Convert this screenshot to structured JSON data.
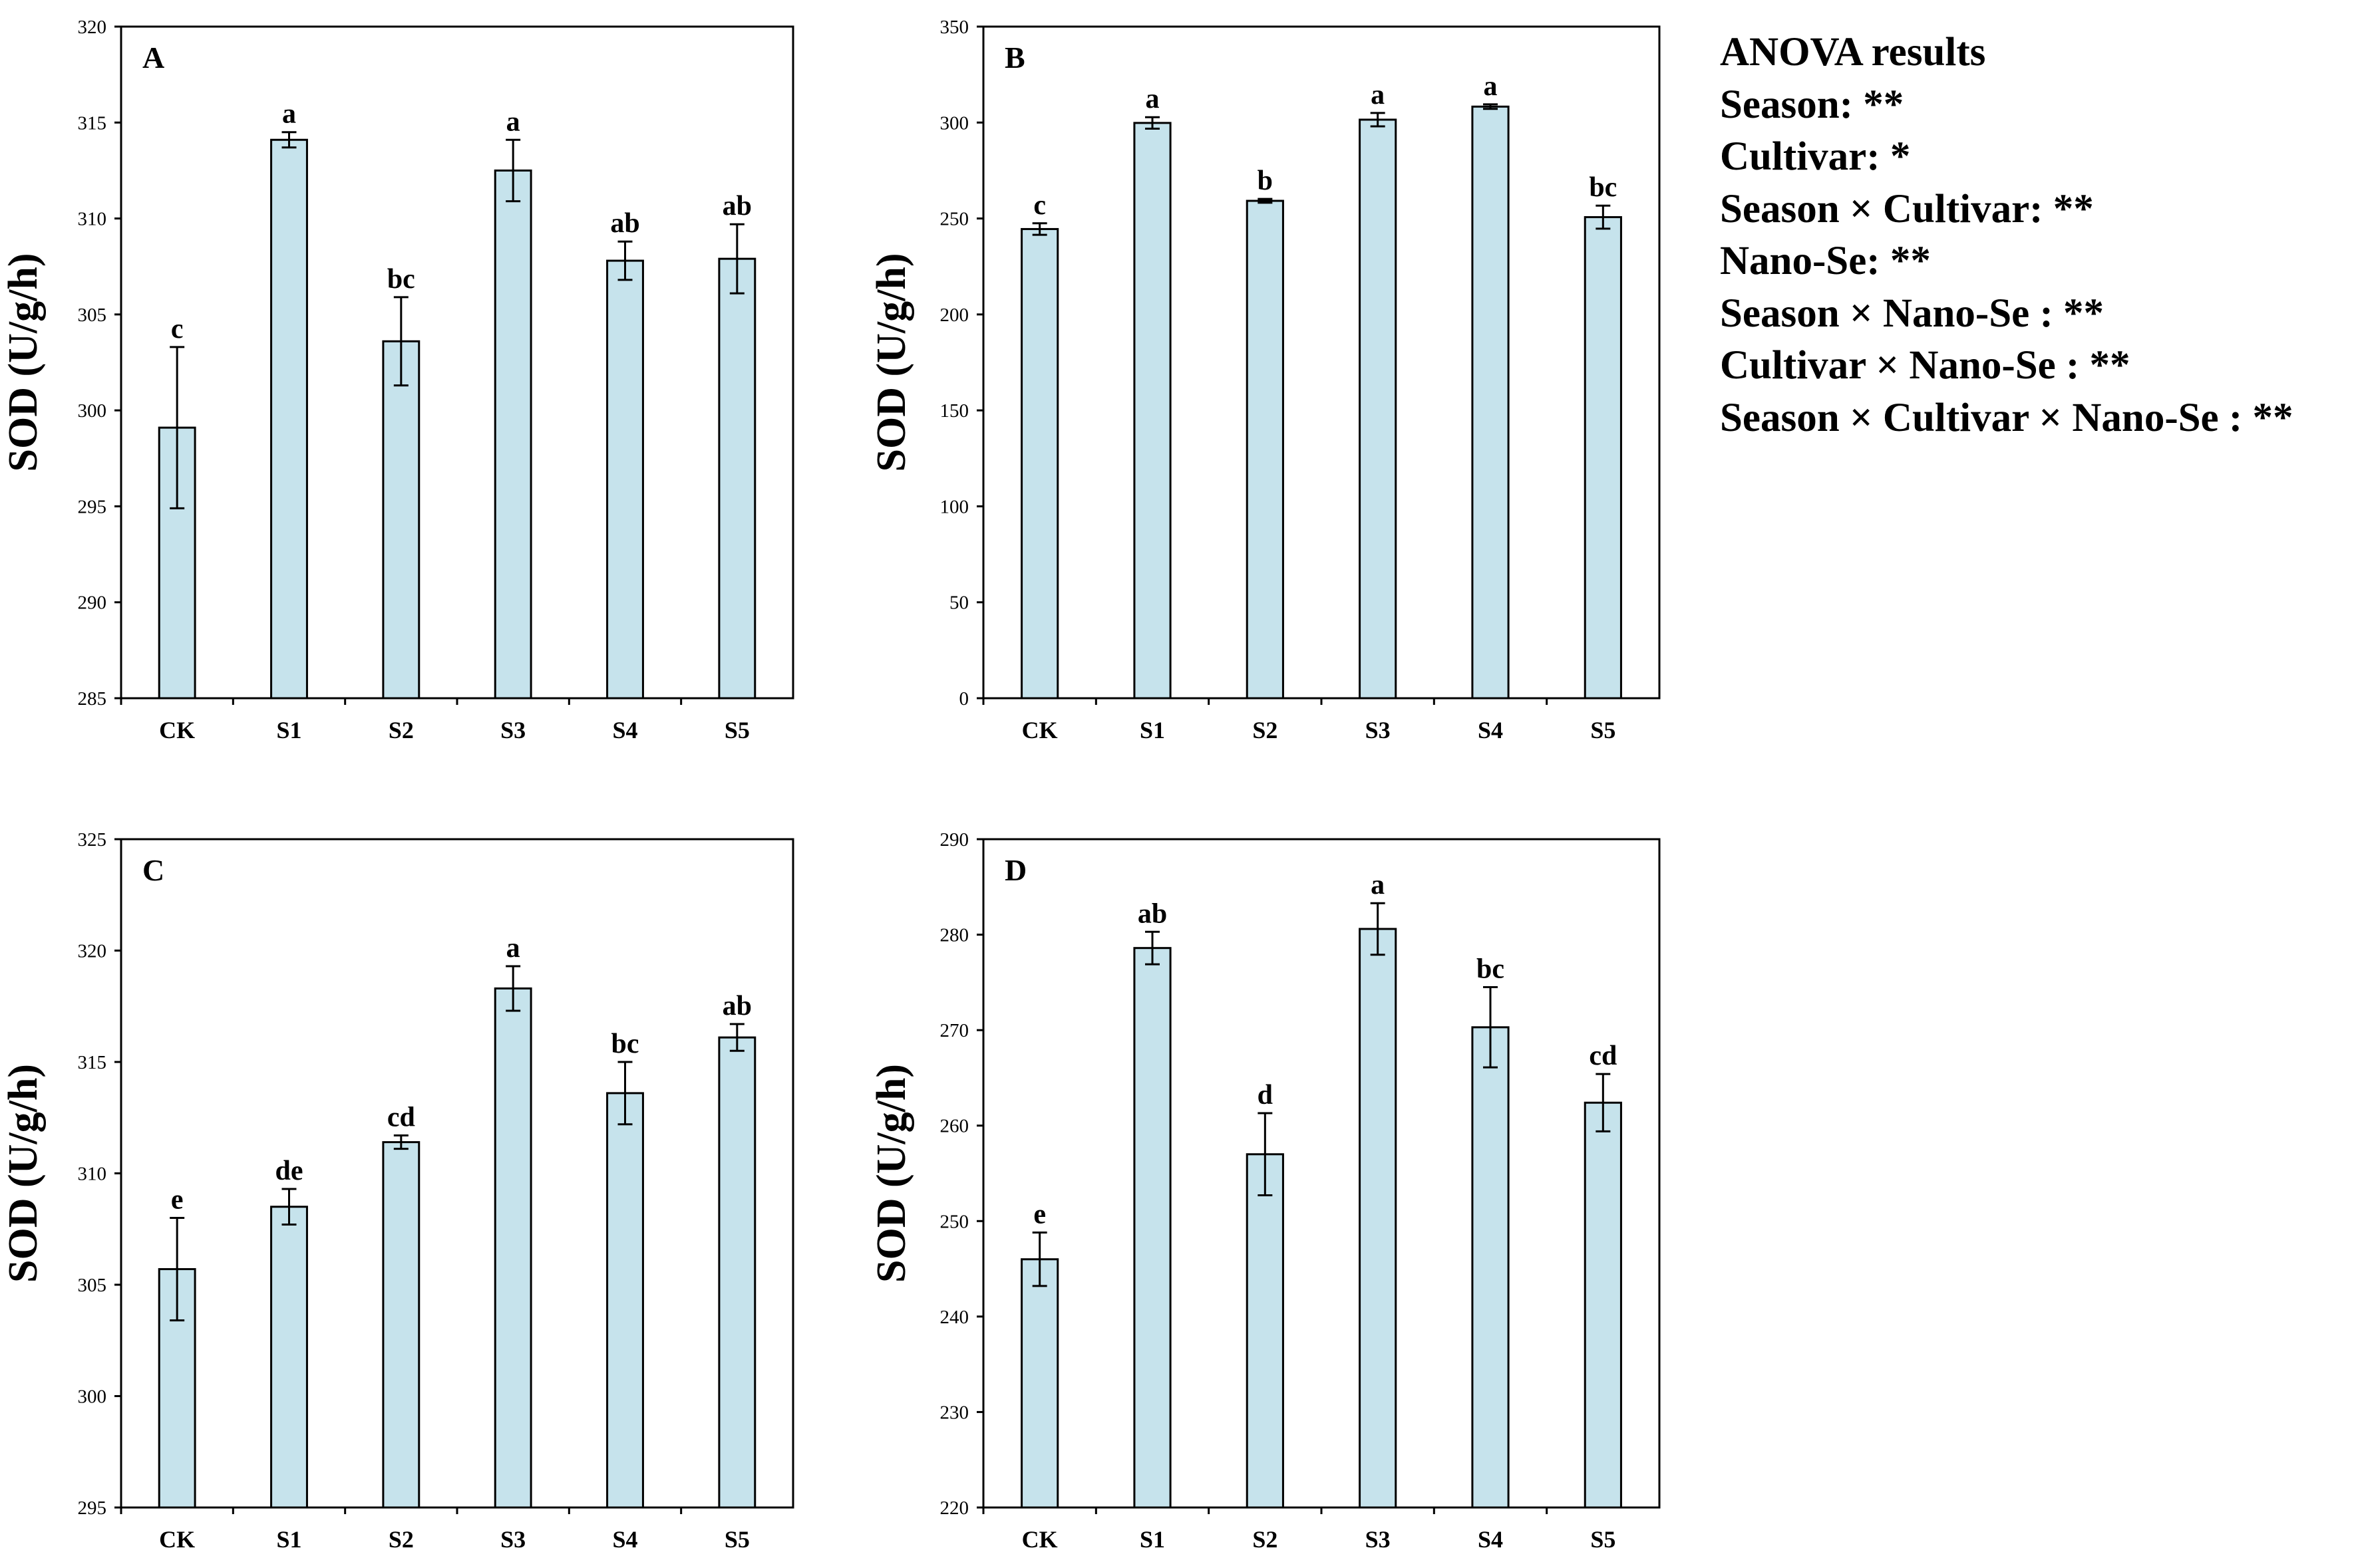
{
  "figure_ylabel": "SOD (U/g/h)",
  "colors": {
    "bar_fill": "#c6e3ec",
    "bar_stroke": "#000000",
    "axis": "#000000"
  },
  "anova": {
    "title": "ANOVA results",
    "lines": [
      "Season: **",
      "Cultivar: *",
      "Season × Cultivar: **",
      "Nano-Se: **",
      "Season × Nano-Se : **",
      "Cultivar × Nano-Se : **",
      "Season × Cultivar × Nano-Se : **"
    ]
  },
  "chart_data": [
    {
      "type": "bar",
      "panel_label": "A",
      "ylabel": "SOD (U/g/h)",
      "categories": [
        "CK",
        "S1",
        "S2",
        "S3",
        "S4",
        "S5"
      ],
      "values": [
        299.1,
        314.1,
        303.6,
        312.5,
        307.8,
        307.9
      ],
      "errors": [
        4.2,
        0.4,
        2.3,
        1.6,
        1.0,
        1.8
      ],
      "letters": [
        "c",
        "a",
        "bc",
        "a",
        "ab",
        "ab"
      ],
      "ylim": [
        285,
        320
      ],
      "yticks": [
        285,
        290,
        295,
        300,
        305,
        310,
        315,
        320
      ]
    },
    {
      "type": "bar",
      "panel_label": "B",
      "ylabel": "SOD (U/g/h)",
      "categories": [
        "CK",
        "S1",
        "S2",
        "S3",
        "S4",
        "S5"
      ],
      "values": [
        244.5,
        299.8,
        259.2,
        301.5,
        308.3,
        250.7
      ],
      "errors": [
        3.0,
        3.0,
        1.0,
        3.5,
        1.2,
        6.0
      ],
      "letters": [
        "c",
        "a",
        "b",
        "a",
        "a",
        "bc"
      ],
      "ylim": [
        0,
        350
      ],
      "yticks": [
        0,
        50,
        100,
        150,
        200,
        250,
        300,
        350
      ]
    },
    {
      "type": "bar",
      "panel_label": "C",
      "ylabel": "SOD (U/g/h)",
      "categories": [
        "CK",
        "S1",
        "S2",
        "S3",
        "S4",
        "S5"
      ],
      "values": [
        305.7,
        308.5,
        311.4,
        318.3,
        313.6,
        316.1
      ],
      "errors": [
        2.3,
        0.8,
        0.3,
        1.0,
        1.4,
        0.6
      ],
      "letters": [
        "e",
        "de",
        "cd",
        "a",
        "bc",
        "ab"
      ],
      "ylim": [
        295,
        325
      ],
      "yticks": [
        295,
        300,
        305,
        310,
        315,
        320,
        325
      ]
    },
    {
      "type": "bar",
      "panel_label": "D",
      "ylabel": "SOD (U/g/h)",
      "categories": [
        "CK",
        "S1",
        "S2",
        "S3",
        "S4",
        "S5"
      ],
      "values": [
        246.0,
        278.6,
        257.0,
        280.6,
        270.3,
        262.4
      ],
      "errors": [
        2.8,
        1.7,
        4.3,
        2.7,
        4.2,
        3.0
      ],
      "letters": [
        "e",
        "ab",
        "d",
        "a",
        "bc",
        "cd"
      ],
      "ylim": [
        220,
        290
      ],
      "yticks": [
        220,
        230,
        240,
        250,
        260,
        270,
        280,
        290
      ]
    }
  ]
}
